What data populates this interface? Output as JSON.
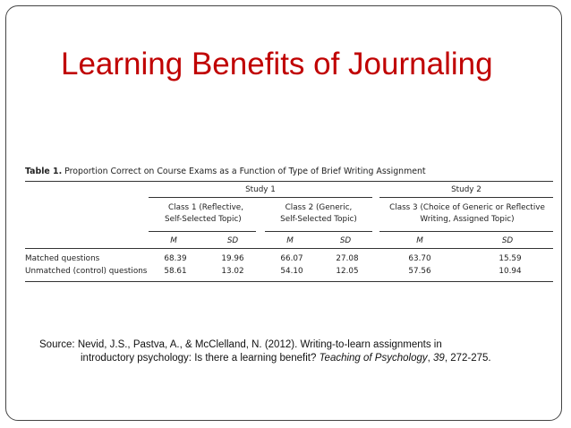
{
  "slide": {
    "title": "Learning Benefits of Journaling"
  },
  "table": {
    "caption_label": "Table 1.",
    "caption_text": "Proportion Correct on Course Exams as a Function of Type of Brief Writing Assignment",
    "studies": [
      "Study 1",
      "Study 2"
    ],
    "classes": [
      {
        "line1": "Class 1 (Reflective,",
        "line2": "Self-Selected Topic)"
      },
      {
        "line1": "Class 2 (Generic,",
        "line2": "Self-Selected Topic)"
      },
      {
        "line1": "Class 3 (Choice of Generic or Reflective",
        "line2": "Writing, Assigned Topic)"
      }
    ],
    "stat_headers": [
      "M",
      "SD",
      "M",
      "SD",
      "M",
      "SD"
    ],
    "rows": [
      {
        "label": "Matched questions",
        "values": [
          "68.39",
          "19.96",
          "66.07",
          "27.08",
          "63.70",
          "15.59"
        ]
      },
      {
        "label": "Unmatched (control) questions",
        "values": [
          "58.61",
          "13.02",
          "54.10",
          "12.05",
          "57.56",
          "10.94"
        ]
      }
    ]
  },
  "source": {
    "line1": "Source:  Nevid, J.S., Pastva, A., & McClelland, N. (2012). Writing-to-learn assignments in",
    "line2_prefix": "introductory psychology:  Is there a learning benefit?  ",
    "journal": "Teaching of Psychology",
    "sep": ", ",
    "volume": "39",
    "pages": ", 272-275."
  }
}
